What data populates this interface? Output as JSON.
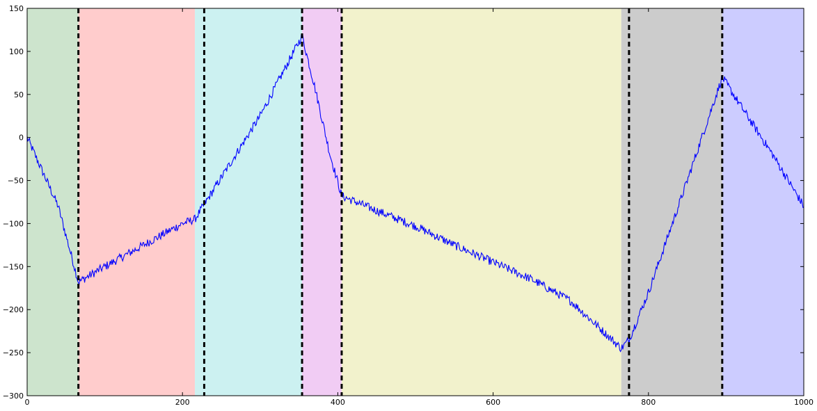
{
  "chart_data": {
    "type": "line",
    "title": "",
    "xlabel": "",
    "ylabel": "",
    "xlim": [
      0,
      1000
    ],
    "ylim": [
      -300,
      150
    ],
    "xticks": [
      0,
      200,
      400,
      600,
      800,
      1000
    ],
    "xtick_labels": [
      "0",
      "200",
      "400",
      "600",
      "800",
      "1000"
    ],
    "yticks": [
      150,
      100,
      50,
      0,
      -50,
      -100,
      -150,
      -200,
      -250,
      -300
    ],
    "ytick_labels": [
      "150",
      "100",
      "50",
      "0",
      "−50",
      "−100",
      "−150",
      "−200",
      "−250",
      "−300"
    ],
    "grid": false,
    "legend": false,
    "regions": [
      {
        "x_start": 0,
        "x_end": 66,
        "color": "#cde4cd"
      },
      {
        "x_start": 66,
        "x_end": 216,
        "color": "#ffcccc"
      },
      {
        "x_start": 216,
        "x_end": 354,
        "color": "#ccf1f1"
      },
      {
        "x_start": 354,
        "x_end": 405,
        "color": "#f1ccf4"
      },
      {
        "x_start": 405,
        "x_end": 765,
        "color": "#f2f2cc"
      },
      {
        "x_start": 765,
        "x_end": 895,
        "color": "#cccccc"
      },
      {
        "x_start": 895,
        "x_end": 1000,
        "color": "#ccccff"
      }
    ],
    "changepoints": [
      66,
      228,
      354,
      405,
      775,
      895
    ],
    "series": [
      {
        "name": "",
        "color": "#0000ff",
        "x": [
          0,
          20,
          40,
          66,
          100,
          150,
          200,
          216,
          228,
          300,
          354,
          370,
          390,
          405,
          450,
          500,
          550,
          600,
          650,
          700,
          765,
          775,
          800,
          850,
          895,
          920,
          960,
          1000
        ],
        "y": [
          0,
          -40,
          -80,
          -168,
          -150,
          -125,
          -100,
          -95,
          -78,
          25,
          118,
          60,
          -20,
          -68,
          -85,
          -103,
          -125,
          -145,
          -165,
          -190,
          -245,
          -235,
          -180,
          -50,
          70,
          35,
          -20,
          -80
        ]
      }
    ]
  }
}
